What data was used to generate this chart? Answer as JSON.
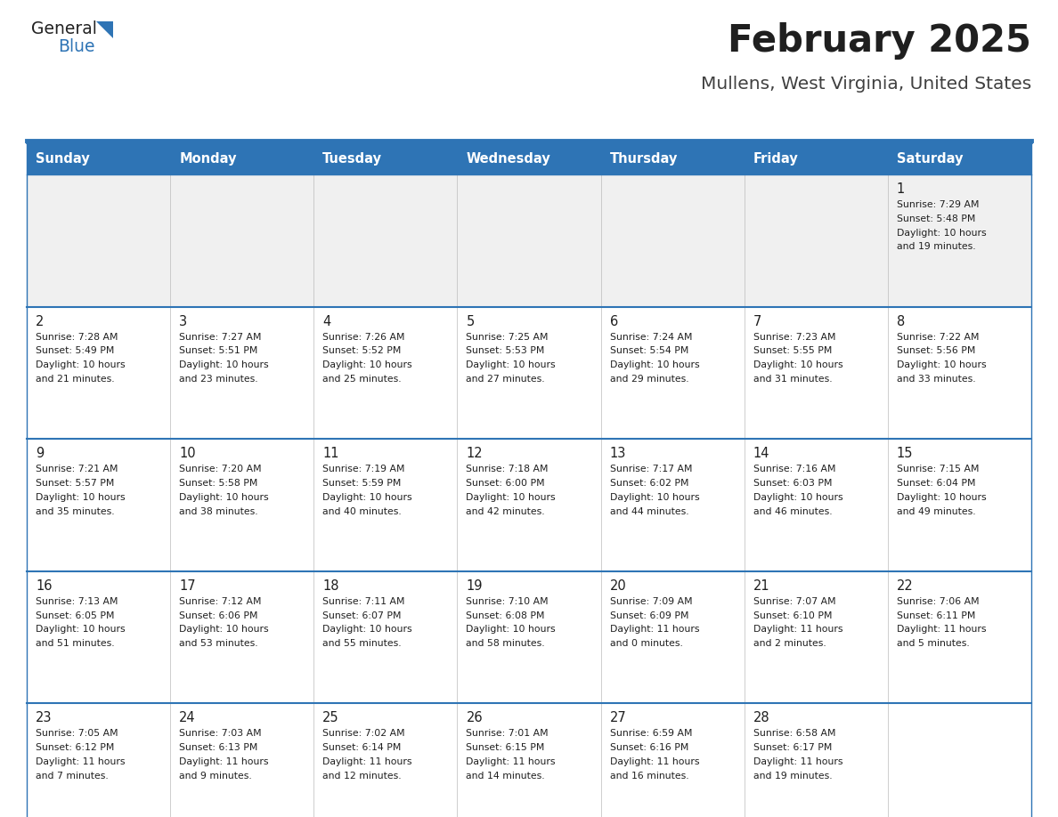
{
  "title": "February 2025",
  "subtitle": "Mullens, West Virginia, United States",
  "header_bg": "#2E74B5",
  "header_text_color": "#FFFFFF",
  "cell_bg_white": "#FFFFFF",
  "cell_bg_gray": "#F0F0F0",
  "border_color": "#2E74B5",
  "day_headers": [
    "Sunday",
    "Monday",
    "Tuesday",
    "Wednesday",
    "Thursday",
    "Friday",
    "Saturday"
  ],
  "title_color": "#1F1F1F",
  "subtitle_color": "#404040",
  "days": [
    {
      "date": 1,
      "col": 6,
      "row": 0,
      "sunrise": "7:29 AM",
      "sunset": "5:48 PM",
      "daylight_h": "10 hours",
      "daylight_m": "and 19 minutes."
    },
    {
      "date": 2,
      "col": 0,
      "row": 1,
      "sunrise": "7:28 AM",
      "sunset": "5:49 PM",
      "daylight_h": "10 hours",
      "daylight_m": "and 21 minutes."
    },
    {
      "date": 3,
      "col": 1,
      "row": 1,
      "sunrise": "7:27 AM",
      "sunset": "5:51 PM",
      "daylight_h": "10 hours",
      "daylight_m": "and 23 minutes."
    },
    {
      "date": 4,
      "col": 2,
      "row": 1,
      "sunrise": "7:26 AM",
      "sunset": "5:52 PM",
      "daylight_h": "10 hours",
      "daylight_m": "and 25 minutes."
    },
    {
      "date": 5,
      "col": 3,
      "row": 1,
      "sunrise": "7:25 AM",
      "sunset": "5:53 PM",
      "daylight_h": "10 hours",
      "daylight_m": "and 27 minutes."
    },
    {
      "date": 6,
      "col": 4,
      "row": 1,
      "sunrise": "7:24 AM",
      "sunset": "5:54 PM",
      "daylight_h": "10 hours",
      "daylight_m": "and 29 minutes."
    },
    {
      "date": 7,
      "col": 5,
      "row": 1,
      "sunrise": "7:23 AM",
      "sunset": "5:55 PM",
      "daylight_h": "10 hours",
      "daylight_m": "and 31 minutes."
    },
    {
      "date": 8,
      "col": 6,
      "row": 1,
      "sunrise": "7:22 AM",
      "sunset": "5:56 PM",
      "daylight_h": "10 hours",
      "daylight_m": "and 33 minutes."
    },
    {
      "date": 9,
      "col": 0,
      "row": 2,
      "sunrise": "7:21 AM",
      "sunset": "5:57 PM",
      "daylight_h": "10 hours",
      "daylight_m": "and 35 minutes."
    },
    {
      "date": 10,
      "col": 1,
      "row": 2,
      "sunrise": "7:20 AM",
      "sunset": "5:58 PM",
      "daylight_h": "10 hours",
      "daylight_m": "and 38 minutes."
    },
    {
      "date": 11,
      "col": 2,
      "row": 2,
      "sunrise": "7:19 AM",
      "sunset": "5:59 PM",
      "daylight_h": "10 hours",
      "daylight_m": "and 40 minutes."
    },
    {
      "date": 12,
      "col": 3,
      "row": 2,
      "sunrise": "7:18 AM",
      "sunset": "6:00 PM",
      "daylight_h": "10 hours",
      "daylight_m": "and 42 minutes."
    },
    {
      "date": 13,
      "col": 4,
      "row": 2,
      "sunrise": "7:17 AM",
      "sunset": "6:02 PM",
      "daylight_h": "10 hours",
      "daylight_m": "and 44 minutes."
    },
    {
      "date": 14,
      "col": 5,
      "row": 2,
      "sunrise": "7:16 AM",
      "sunset": "6:03 PM",
      "daylight_h": "10 hours",
      "daylight_m": "and 46 minutes."
    },
    {
      "date": 15,
      "col": 6,
      "row": 2,
      "sunrise": "7:15 AM",
      "sunset": "6:04 PM",
      "daylight_h": "10 hours",
      "daylight_m": "and 49 minutes."
    },
    {
      "date": 16,
      "col": 0,
      "row": 3,
      "sunrise": "7:13 AM",
      "sunset": "6:05 PM",
      "daylight_h": "10 hours",
      "daylight_m": "and 51 minutes."
    },
    {
      "date": 17,
      "col": 1,
      "row": 3,
      "sunrise": "7:12 AM",
      "sunset": "6:06 PM",
      "daylight_h": "10 hours",
      "daylight_m": "and 53 minutes."
    },
    {
      "date": 18,
      "col": 2,
      "row": 3,
      "sunrise": "7:11 AM",
      "sunset": "6:07 PM",
      "daylight_h": "10 hours",
      "daylight_m": "and 55 minutes."
    },
    {
      "date": 19,
      "col": 3,
      "row": 3,
      "sunrise": "7:10 AM",
      "sunset": "6:08 PM",
      "daylight_h": "10 hours",
      "daylight_m": "and 58 minutes."
    },
    {
      "date": 20,
      "col": 4,
      "row": 3,
      "sunrise": "7:09 AM",
      "sunset": "6:09 PM",
      "daylight_h": "11 hours",
      "daylight_m": "and 0 minutes."
    },
    {
      "date": 21,
      "col": 5,
      "row": 3,
      "sunrise": "7:07 AM",
      "sunset": "6:10 PM",
      "daylight_h": "11 hours",
      "daylight_m": "and 2 minutes."
    },
    {
      "date": 22,
      "col": 6,
      "row": 3,
      "sunrise": "7:06 AM",
      "sunset": "6:11 PM",
      "daylight_h": "11 hours",
      "daylight_m": "and 5 minutes."
    },
    {
      "date": 23,
      "col": 0,
      "row": 4,
      "sunrise": "7:05 AM",
      "sunset": "6:12 PM",
      "daylight_h": "11 hours",
      "daylight_m": "and 7 minutes."
    },
    {
      "date": 24,
      "col": 1,
      "row": 4,
      "sunrise": "7:03 AM",
      "sunset": "6:13 PM",
      "daylight_h": "11 hours",
      "daylight_m": "and 9 minutes."
    },
    {
      "date": 25,
      "col": 2,
      "row": 4,
      "sunrise": "7:02 AM",
      "sunset": "6:14 PM",
      "daylight_h": "11 hours",
      "daylight_m": "and 12 minutes."
    },
    {
      "date": 26,
      "col": 3,
      "row": 4,
      "sunrise": "7:01 AM",
      "sunset": "6:15 PM",
      "daylight_h": "11 hours",
      "daylight_m": "and 14 minutes."
    },
    {
      "date": 27,
      "col": 4,
      "row": 4,
      "sunrise": "6:59 AM",
      "sunset": "6:16 PM",
      "daylight_h": "11 hours",
      "daylight_m": "and 16 minutes."
    },
    {
      "date": 28,
      "col": 5,
      "row": 4,
      "sunrise": "6:58 AM",
      "sunset": "6:17 PM",
      "daylight_h": "11 hours",
      "daylight_m": "and 19 minutes."
    }
  ],
  "num_rows": 5,
  "logo_general_color": "#222222",
  "logo_blue_color": "#2E74B5"
}
